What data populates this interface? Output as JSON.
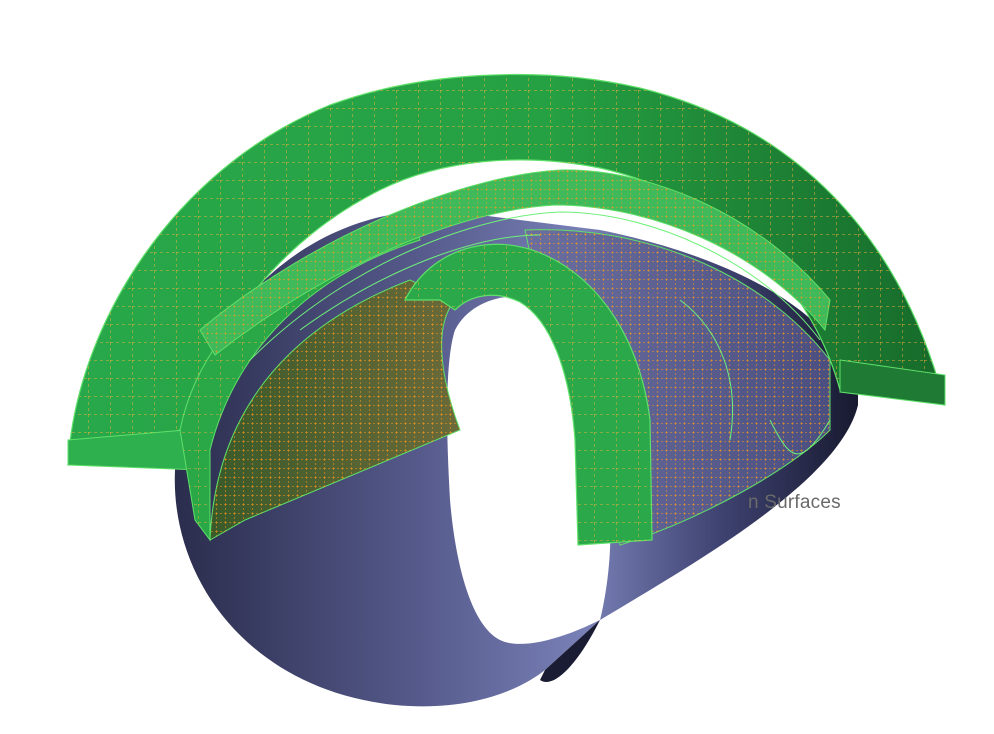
{
  "viewport": {
    "partial_label": "n Surfaces"
  },
  "colors": {
    "background": "#ffffff",
    "surface_blue_light": "#7c84b8",
    "surface_blue_dark": "#1c1e35",
    "mesh_green": "#22a844",
    "mesh_green_dark": "#1a6b2c",
    "mesh_edge": "#5fe06a",
    "node_orange": "#ff9a1a"
  }
}
